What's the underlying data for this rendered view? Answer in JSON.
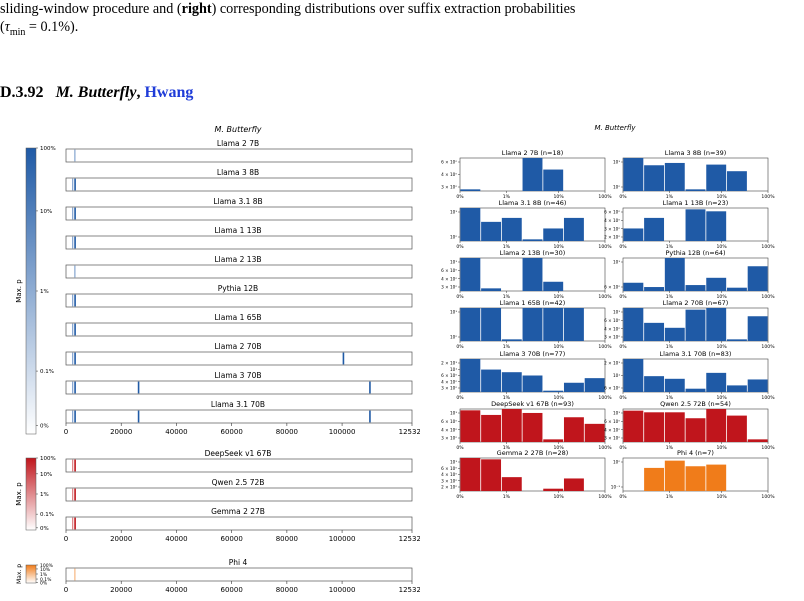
{
  "caption": {
    "line1": "sliding-window procedure and (right) corresponding distributions over suffix extraction probabilities",
    "line1_bold": "right",
    "line2": "(τmin = 0.1%)."
  },
  "section": {
    "number": "D.3.92",
    "title": "M. Butterfly",
    "author": "Hwang"
  },
  "left_figure": {
    "title": "M. Butterfly",
    "colorbar_label": "Max. p_z",
    "blue_ticks": [
      "100%",
      "10%",
      "1%",
      "0.1%",
      "0%"
    ],
    "red_ticks": [
      "100%",
      "10%",
      "1%",
      "0.1%",
      "0%"
    ],
    "orange_ticks": [
      "100%",
      "10%",
      "1%",
      "0.1%",
      "0%"
    ],
    "x_ticks": [
      "0",
      "20000",
      "40000",
      "60000",
      "80000",
      "100000",
      "125325"
    ],
    "colors": {
      "blue": "#1f5aa6",
      "red": "#c0151c",
      "orange": "#f07c1a"
    }
  },
  "right_figure": {
    "title": "M. Butterfly",
    "x_ticks": [
      "0%",
      "1%",
      "10%",
      "100%"
    ]
  },
  "chart_data": [
    {
      "type": "heatmap",
      "title": "M. Butterfly",
      "xlim": [
        0,
        125325
      ],
      "rows": [
        {
          "name": "Llama 2 7B",
          "family": "blue",
          "hits": [
            3000
          ]
        },
        {
          "name": "Llama 3 8B",
          "family": "blue",
          "hits": [
            2200,
            3000
          ]
        },
        {
          "name": "Llama 3.1 8B",
          "family": "blue",
          "hits": [
            2200,
            3000
          ]
        },
        {
          "name": "Llama 1 13B",
          "family": "blue",
          "hits": [
            2200,
            3000
          ]
        },
        {
          "name": "Llama 2 13B",
          "family": "blue",
          "hits": [
            3000
          ]
        },
        {
          "name": "Pythia 12B",
          "family": "blue",
          "hits": [
            2200,
            3000
          ]
        },
        {
          "name": "Llama 1 65B",
          "family": "blue",
          "hits": [
            2200,
            3000
          ]
        },
        {
          "name": "Llama 2 70B",
          "family": "blue",
          "hits": [
            2200,
            3000,
            100200
          ]
        },
        {
          "name": "Llama 3 70B",
          "family": "blue",
          "hits": [
            2200,
            3000,
            26000,
            109800
          ]
        },
        {
          "name": "Llama 3.1 70B",
          "family": "blue",
          "hits": [
            2200,
            3000,
            26000,
            109800
          ]
        },
        {
          "name": "DeepSeek v1 67B",
          "family": "red",
          "hits": [
            2200,
            3000
          ]
        },
        {
          "name": "Qwen 2.5 72B",
          "family": "red",
          "hits": [
            2200,
            3000
          ]
        },
        {
          "name": "Gemma 2 27B",
          "family": "red",
          "hits": [
            2200,
            3000
          ]
        },
        {
          "name": "Phi 4",
          "family": "orange",
          "hits": [
            3000
          ]
        }
      ]
    },
    {
      "type": "bar",
      "title": "M. Butterfly",
      "x_scale": "log",
      "xlim": [
        "0%",
        "100%"
      ],
      "panels": [
        {
          "name": "Llama 2 7B (n=18)",
          "family": "blue",
          "y_ticks": [
            "6 × 10⁰",
            "4 × 10⁰",
            "3 × 10⁰"
          ],
          "values": [
            0.05,
            0,
            0,
            1.0,
            0.65,
            0,
            0
          ]
        },
        {
          "name": "Llama 3 8B (n=39)",
          "family": "blue",
          "y_ticks": [
            "10¹",
            "10⁰"
          ],
          "values": [
            1.0,
            0.78,
            0.85,
            0.05,
            0.8,
            0.6,
            0
          ]
        },
        {
          "name": "Llama 3.1 8B (n=46)",
          "family": "blue",
          "y_ticks": [
            "10¹",
            "10⁰"
          ],
          "values": [
            1.0,
            0.58,
            0.7,
            0.05,
            0.38,
            0.7,
            0
          ]
        },
        {
          "name": "Llama 1 13B (n=23)",
          "family": "blue",
          "y_ticks": [
            "6 × 10⁰",
            "4 × 10⁰",
            "3 × 10⁰",
            "2 × 10⁰"
          ],
          "values": [
            0.38,
            0.7,
            0,
            0.96,
            0.9,
            0,
            0
          ]
        },
        {
          "name": "Llama 2 13B (n=30)",
          "family": "blue",
          "y_ticks": [
            "10¹",
            "6 × 10⁰",
            "4 × 10⁰",
            "3 × 10⁰"
          ],
          "values": [
            1.0,
            0.08,
            0,
            1.0,
            0.28,
            0,
            0
          ]
        },
        {
          "name": "Pythia 12B (n=64)",
          "family": "blue",
          "y_ticks": [
            "10¹",
            "6 × 10⁰"
          ],
          "values": [
            0.25,
            0.12,
            1.0,
            0.18,
            0.4,
            0.1,
            0.75
          ]
        },
        {
          "name": "Llama 1 65B (n=42)",
          "family": "blue",
          "y_ticks": [
            "10¹",
            "10⁰"
          ],
          "values": [
            1.0,
            1.0,
            0.05,
            1.0,
            1.0,
            1.0,
            0
          ]
        },
        {
          "name": "Llama 2 70B (n=67)",
          "family": "blue",
          "y_ticks": [
            "10¹",
            "6 × 10⁰",
            "4 × 10⁰",
            "3 × 10⁰"
          ],
          "values": [
            1.0,
            0.55,
            0.4,
            0.95,
            1.0,
            0.05,
            0.75
          ]
        },
        {
          "name": "Llama 3 70B (n=77)",
          "family": "blue",
          "y_ticks": [
            "2 × 10¹",
            "10¹",
            "6 × 10⁰",
            "4 × 10⁰",
            "3 × 10⁰"
          ],
          "values": [
            1.0,
            0.68,
            0.6,
            0.5,
            0.04,
            0.28,
            0.42
          ]
        },
        {
          "name": "Llama 3.1 70B (n=83)",
          "family": "blue",
          "y_ticks": [
            "2 × 10¹",
            "10¹",
            "6 × 10⁰"
          ],
          "values": [
            1.0,
            0.48,
            0.4,
            0.1,
            0.58,
            0.2,
            0.38
          ]
        },
        {
          "name": "DeepSeek v1 67B (n=93)",
          "family": "red",
          "y_ticks": [
            "10¹",
            "6 × 10⁰",
            "4 × 10⁰",
            "3 × 10⁰"
          ],
          "values": [
            0.96,
            0.82,
            1.0,
            0.88,
            0.08,
            0.75,
            0.55
          ]
        },
        {
          "name": "Qwen 2.5 72B (n=54)",
          "family": "red",
          "y_ticks": [
            "10¹",
            "6 × 10⁰",
            "4 × 10⁰",
            "3 × 10⁰"
          ],
          "values": [
            0.95,
            0.9,
            0.9,
            0.72,
            1.0,
            0.8,
            0.08
          ]
        },
        {
          "name": "Gemma 2 27B (n=28)",
          "family": "red",
          "y_ticks": [
            "10¹",
            "6 × 10⁰",
            "4 × 10⁰",
            "3 × 10⁰",
            "2 × 10⁰"
          ],
          "values": [
            1.0,
            0.96,
            0.42,
            0,
            0.07,
            0.38,
            0
          ]
        },
        {
          "name": "Phi 4 (n=7)",
          "family": "orange",
          "y_ticks": [
            "10⁰",
            "10⁻¹"
          ],
          "values": [
            0,
            0.7,
            0.92,
            0.75,
            0.8,
            0,
            0
          ]
        }
      ]
    }
  ]
}
